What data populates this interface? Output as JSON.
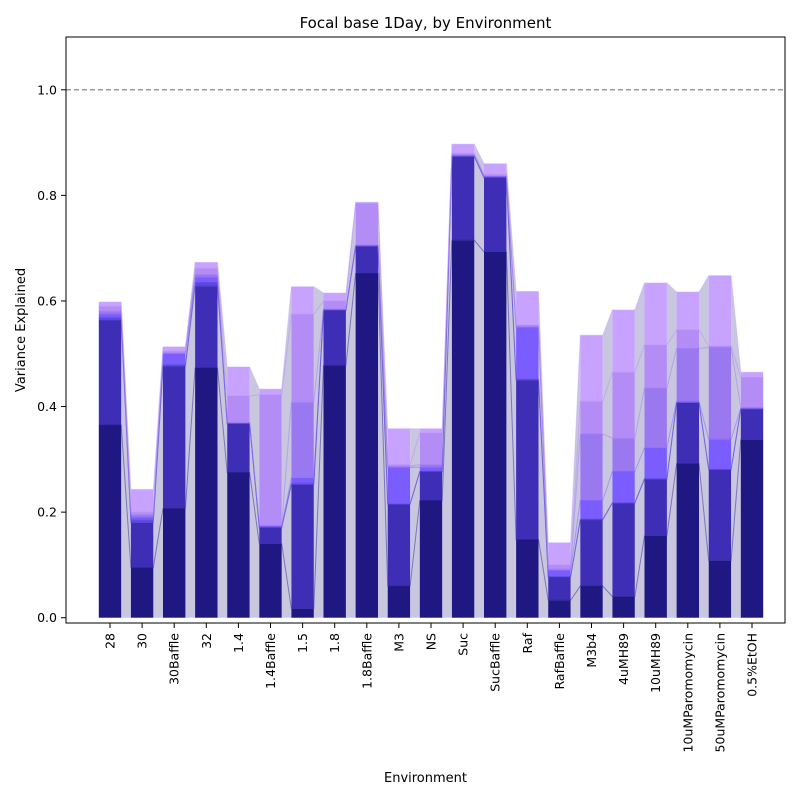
{
  "chart_data": {
    "type": "bar",
    "title": "Focal base 1Day, by Environment",
    "xlabel": "Environment",
    "ylabel": "Variance Explained",
    "ylim": [
      -0.01,
      1.1
    ],
    "yticks": [
      0.0,
      0.2,
      0.4,
      0.6,
      0.8,
      1.0
    ],
    "ytick_labels": [
      "0.0",
      "0.2",
      "0.4",
      "0.6",
      "0.8",
      "1.0"
    ],
    "reference_line": 1.0,
    "grid": false,
    "stacked": true,
    "layer_colors": [
      "#1f1782",
      "#3e2db5",
      "#5a48e6",
      "#7b5cff",
      "#9a78f0",
      "#b38cf5",
      "#c7a3ff"
    ],
    "fill_color": "#c6c3de",
    "categories": [
      "28",
      "30",
      "30Baffle",
      "32",
      "1.4",
      "1.4Baffle",
      "1.5",
      "1.8",
      "1.8Baffle",
      "M3",
      "NS",
      "Suc",
      "SucBaffle",
      "Raf",
      "RafBaffle",
      "M3b4",
      "4uMH89",
      "10uMH89",
      "10uMParomomycin",
      "50uMParomomycin",
      "0.5%EtOH"
    ],
    "cumulative": [
      [
        0.365,
        0.563,
        0.569,
        0.575,
        0.58,
        0.59,
        0.598
      ],
      [
        0.095,
        0.18,
        0.185,
        0.19,
        0.195,
        0.2,
        0.243
      ],
      [
        0.207,
        0.476,
        0.48,
        0.5,
        0.502,
        0.505,
        0.513
      ],
      [
        0.473,
        0.628,
        0.635,
        0.645,
        0.65,
        0.662,
        0.673
      ],
      [
        0.275,
        0.367,
        0.368,
        0.369,
        0.37,
        0.42,
        0.475
      ],
      [
        0.14,
        0.17,
        0.172,
        0.174,
        0.175,
        0.422,
        0.433
      ],
      [
        0.017,
        0.252,
        0.255,
        0.265,
        0.408,
        0.575,
        0.627
      ],
      [
        0.478,
        0.582,
        0.583,
        0.584,
        0.585,
        0.6,
        0.615
      ],
      [
        0.652,
        0.703,
        0.704,
        0.705,
        0.706,
        0.785,
        0.787
      ],
      [
        0.06,
        0.215,
        0.216,
        0.285,
        0.287,
        0.29,
        0.358
      ],
      [
        0.222,
        0.276,
        0.278,
        0.285,
        0.29,
        0.35,
        0.358
      ],
      [
        0.715,
        0.873,
        0.875,
        0.876,
        0.877,
        0.88,
        0.897
      ],
      [
        0.693,
        0.833,
        0.835,
        0.836,
        0.837,
        0.84,
        0.86
      ],
      [
        0.148,
        0.45,
        0.452,
        0.55,
        0.552,
        0.555,
        0.618
      ],
      [
        0.033,
        0.077,
        0.078,
        0.09,
        0.092,
        0.1,
        0.142
      ],
      [
        0.06,
        0.185,
        0.187,
        0.222,
        0.348,
        0.41,
        0.535
      ],
      [
        0.04,
        0.217,
        0.218,
        0.277,
        0.34,
        0.465,
        0.583
      ],
      [
        0.155,
        0.262,
        0.264,
        0.322,
        0.435,
        0.517,
        0.634
      ],
      [
        0.292,
        0.407,
        0.408,
        0.41,
        0.51,
        0.545,
        0.617
      ],
      [
        0.108,
        0.28,
        0.282,
        0.338,
        0.512,
        0.515,
        0.648
      ],
      [
        0.337,
        0.395,
        0.396,
        0.397,
        0.398,
        0.455,
        0.465
      ]
    ]
  }
}
